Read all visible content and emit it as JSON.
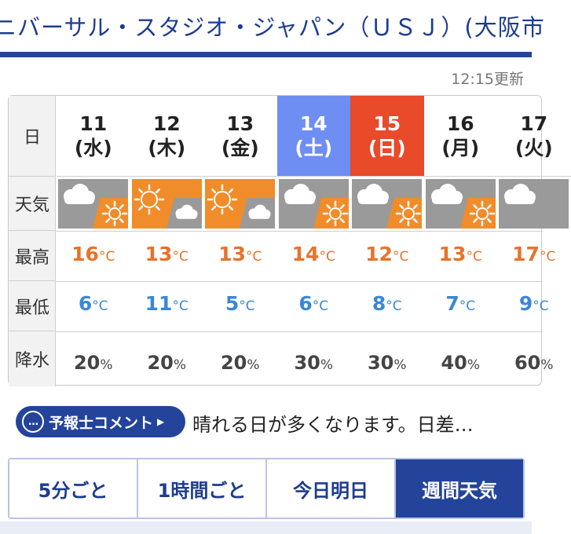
{
  "header": {
    "title": "ニバーサル・スタジオ・ジャパン（ＵＳＪ）(大阪市"
  },
  "updated": "12:15更新",
  "row_labels": {
    "date": "日",
    "weather": "天気",
    "high": "最高",
    "low": "最低",
    "rain": "降水"
  },
  "days": [
    {
      "date": "11",
      "dow": "(水)",
      "hi": "16",
      "lo": "6",
      "rain": "20",
      "icon": "cloudy-then-sunny-icon"
    },
    {
      "date": "12",
      "dow": "(木)",
      "hi": "13",
      "lo": "11",
      "rain": "20",
      "icon": "sunny-then-cloudy-icon"
    },
    {
      "date": "13",
      "dow": "(金)",
      "hi": "13",
      "lo": "5",
      "rain": "20",
      "icon": "sunny-then-cloudy-icon"
    },
    {
      "date": "14",
      "dow": "(土)",
      "hi": "14",
      "lo": "6",
      "rain": "30",
      "icon": "cloudy-then-sunny-icon"
    },
    {
      "date": "15",
      "dow": "(日)",
      "hi": "12",
      "lo": "8",
      "rain": "30",
      "icon": "cloudy-then-sunny-icon"
    },
    {
      "date": "16",
      "dow": "(月)",
      "hi": "13",
      "lo": "7",
      "rain": "40",
      "icon": "cloudy-then-sunny-icon"
    },
    {
      "date": "17",
      "dow": "(火)",
      "hi": "17",
      "lo": "9",
      "rain": "60",
      "icon": "cloudy-icon"
    }
  ],
  "units": {
    "temp": "°C",
    "percent": "%"
  },
  "comment": {
    "button_label": "予報士コメント",
    "bubble": "…",
    "text": "晴れる日が多くなります。日差…"
  },
  "tabs": [
    {
      "label": "5分ごと",
      "active": false
    },
    {
      "label": "1時間ごと",
      "active": false
    },
    {
      "label": "今日明日",
      "active": false
    },
    {
      "label": "週間天気",
      "active": true
    }
  ],
  "colors": {
    "brand": "#23449a",
    "saturday": "#6f8ef3",
    "sunday": "#e84a2a",
    "high_temp": "#e8722a",
    "low_temp": "#3a87d8",
    "sunny_bg": "#f08c2a",
    "cloudy_bg": "#9a9a9a"
  }
}
